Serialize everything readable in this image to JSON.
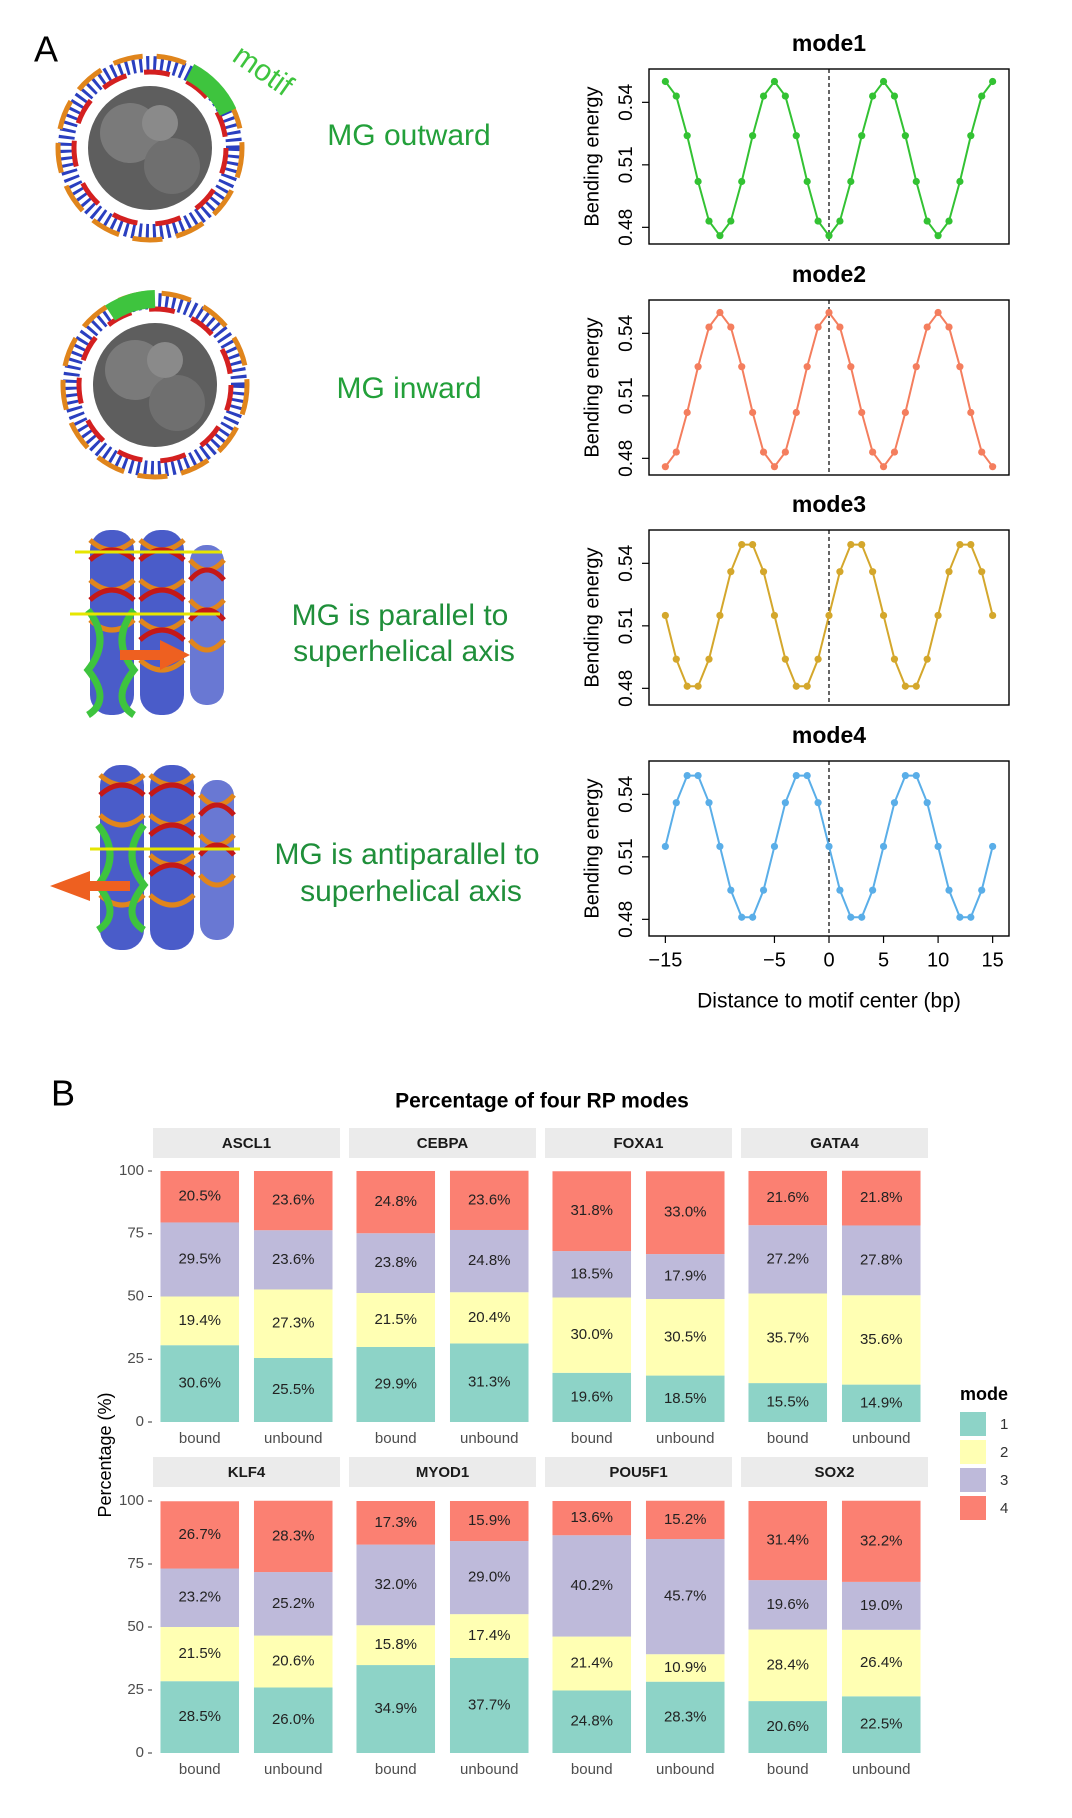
{
  "figure": {
    "panel_labels": [
      "A",
      "B"
    ],
    "annotations": [
      "motif",
      "MG outward",
      "MG inward",
      "MG is parallel to",
      "superhelical axis",
      "MG is antiparallel to",
      "superhelical axis"
    ]
  },
  "chart_data": [
    {
      "type": "line",
      "title": "mode1",
      "ylabel": "Bending energy",
      "x": [
        -15,
        -14,
        -13,
        -12,
        -11,
        -10,
        -9,
        -8,
        -7,
        -6,
        -5,
        -4,
        -3,
        -2,
        -1,
        0,
        1,
        2,
        3,
        4,
        5,
        6,
        7,
        8,
        9,
        10,
        11,
        12,
        13,
        14,
        15
      ],
      "series": [
        {
          "color": "#33c233",
          "values": [
            0.55,
            0.543,
            0.524,
            0.502,
            0.483,
            0.476,
            0.483,
            0.502,
            0.524,
            0.543,
            0.55,
            0.543,
            0.524,
            0.502,
            0.483,
            0.476,
            0.483,
            0.502,
            0.524,
            0.543,
            0.55,
            0.543,
            0.524,
            0.502,
            0.483,
            0.476,
            0.483,
            0.502,
            0.524,
            0.543,
            0.55
          ]
        }
      ],
      "xlim": [
        -16.5,
        16.5
      ],
      "ylim": [
        0.472,
        0.556
      ],
      "yticks": [
        0.48,
        0.51,
        0.54
      ],
      "vline": 0
    },
    {
      "type": "line",
      "title": "mode2",
      "ylabel": "Bending energy",
      "x": [
        -15,
        -14,
        -13,
        -12,
        -11,
        -10,
        -9,
        -8,
        -7,
        -6,
        -5,
        -4,
        -3,
        -2,
        -1,
        0,
        1,
        2,
        3,
        4,
        5,
        6,
        7,
        8,
        9,
        10,
        11,
        12,
        13,
        14,
        15
      ],
      "series": [
        {
          "color": "#f47e5e",
          "values": [
            0.476,
            0.483,
            0.502,
            0.524,
            0.543,
            0.55,
            0.543,
            0.524,
            0.502,
            0.483,
            0.476,
            0.483,
            0.502,
            0.524,
            0.543,
            0.55,
            0.543,
            0.524,
            0.502,
            0.483,
            0.476,
            0.483,
            0.502,
            0.524,
            0.543,
            0.55,
            0.543,
            0.524,
            0.502,
            0.483,
            0.476
          ]
        }
      ],
      "xlim": [
        -16.5,
        16.5
      ],
      "ylim": [
        0.472,
        0.556
      ],
      "yticks": [
        0.48,
        0.51,
        0.54
      ],
      "vline": 0
    },
    {
      "type": "line",
      "title": "mode3",
      "ylabel": "Bending energy",
      "x": [
        -15,
        -14,
        -13,
        -12,
        -11,
        -10,
        -9,
        -8,
        -7,
        -6,
        -5,
        -4,
        -3,
        -2,
        -1,
        0,
        1,
        2,
        3,
        4,
        5,
        6,
        7,
        8,
        9,
        10,
        11,
        12,
        13,
        14,
        15
      ],
      "series": [
        {
          "color": "#d4a72c",
          "values": [
            0.515,
            0.494,
            0.481,
            0.481,
            0.494,
            0.515,
            0.536,
            0.549,
            0.549,
            0.536,
            0.515,
            0.494,
            0.481,
            0.481,
            0.494,
            0.515,
            0.536,
            0.549,
            0.549,
            0.536,
            0.515,
            0.494,
            0.481,
            0.481,
            0.494,
            0.515,
            0.536,
            0.549,
            0.549,
            0.536,
            0.515
          ]
        }
      ],
      "xlim": [
        -16.5,
        16.5
      ],
      "ylim": [
        0.472,
        0.556
      ],
      "yticks": [
        0.48,
        0.51,
        0.54
      ],
      "vline": 0
    },
    {
      "type": "line",
      "title": "mode4",
      "ylabel": "Bending energy",
      "xlabel": "Distance to motif center (bp)",
      "x": [
        -15,
        -14,
        -13,
        -12,
        -11,
        -10,
        -9,
        -8,
        -7,
        -6,
        -5,
        -4,
        -3,
        -2,
        -1,
        0,
        1,
        2,
        3,
        4,
        5,
        6,
        7,
        8,
        9,
        10,
        11,
        12,
        13,
        14,
        15
      ],
      "series": [
        {
          "color": "#5aaee8",
          "values": [
            0.515,
            0.536,
            0.549,
            0.549,
            0.536,
            0.515,
            0.494,
            0.481,
            0.481,
            0.494,
            0.515,
            0.536,
            0.549,
            0.549,
            0.536,
            0.515,
            0.494,
            0.481,
            0.481,
            0.494,
            0.515,
            0.536,
            0.549,
            0.549,
            0.536,
            0.515,
            0.494,
            0.481,
            0.481,
            0.494,
            0.515
          ]
        }
      ],
      "xlim": [
        -16.5,
        16.5
      ],
      "ylim": [
        0.472,
        0.556
      ],
      "yticks": [
        0.48,
        0.51,
        0.54
      ],
      "vline": 0,
      "xticks": [
        {
          "value": -15,
          "label": "−15"
        },
        {
          "value": -5,
          "label": "−5"
        },
        0,
        5,
        10,
        15
      ]
    },
    {
      "type": "bar",
      "stacked": true,
      "title": "Percentage of four RP modes",
      "ylabel": "Percentage (%)",
      "ylim": [
        0,
        100
      ],
      "yticks": [
        0,
        25,
        50,
        75,
        100
      ],
      "categories": [
        "bound",
        "unbound"
      ],
      "legend": {
        "title": "mode",
        "position": "right"
      },
      "series": [
        {
          "name": "1",
          "color": "#8dd3c7"
        },
        {
          "name": "2",
          "color": "#ffffb3"
        },
        {
          "name": "3",
          "color": "#bebada"
        },
        {
          "name": "4",
          "color": "#fb8072"
        }
      ],
      "facets": [
        {
          "title": "ASCL1",
          "series": [
            {
              "values": [
                30.6,
                25.5
              ],
              "value_labels": [
                "30.6%",
                "25.5%"
              ]
            },
            {
              "values": [
                19.4,
                27.3
              ],
              "value_labels": [
                "19.4%",
                "27.3%"
              ]
            },
            {
              "values": [
                29.5,
                23.6
              ],
              "value_labels": [
                "29.5%",
                "23.6%"
              ]
            },
            {
              "values": [
                20.5,
                23.6
              ],
              "value_labels": [
                "20.5%",
                "23.6%"
              ]
            }
          ]
        },
        {
          "title": "CEBPA",
          "series": [
            {
              "values": [
                29.9,
                31.3
              ],
              "value_labels": [
                "29.9%",
                "31.3%"
              ]
            },
            {
              "values": [
                21.5,
                20.4
              ],
              "value_labels": [
                "21.5%",
                "20.4%"
              ]
            },
            {
              "values": [
                23.8,
                24.8
              ],
              "value_labels": [
                "23.8%",
                "24.8%"
              ]
            },
            {
              "values": [
                24.8,
                23.6
              ],
              "value_labels": [
                "24.8%",
                "23.6%"
              ]
            }
          ]
        },
        {
          "title": "FOXA1",
          "series": [
            {
              "values": [
                19.6,
                18.5
              ],
              "value_labels": [
                "19.6%",
                "18.5%"
              ]
            },
            {
              "values": [
                30.0,
                30.5
              ],
              "value_labels": [
                "30.0%",
                "30.5%"
              ]
            },
            {
              "values": [
                18.5,
                17.9
              ],
              "value_labels": [
                "18.5%",
                "17.9%"
              ]
            },
            {
              "values": [
                31.8,
                33.0
              ],
              "value_labels": [
                "31.8%",
                "33.0%"
              ]
            }
          ]
        },
        {
          "title": "GATA4",
          "series": [
            {
              "values": [
                15.5,
                14.9
              ],
              "value_labels": [
                "15.5%",
                "14.9%"
              ]
            },
            {
              "values": [
                35.7,
                35.6
              ],
              "value_labels": [
                "35.7%",
                "35.6%"
              ]
            },
            {
              "values": [
                27.2,
                27.8
              ],
              "value_labels": [
                "27.2%",
                "27.8%"
              ]
            },
            {
              "values": [
                21.6,
                21.8
              ],
              "value_labels": [
                "21.6%",
                "21.8%"
              ]
            }
          ]
        },
        {
          "title": "KLF4",
          "series": [
            {
              "values": [
                28.5,
                26.0
              ],
              "value_labels": [
                "28.5%",
                "26.0%"
              ]
            },
            {
              "values": [
                21.5,
                20.6
              ],
              "value_labels": [
                "21.5%",
                "20.6%"
              ]
            },
            {
              "values": [
                23.2,
                25.2
              ],
              "value_labels": [
                "23.2%",
                "25.2%"
              ]
            },
            {
              "values": [
                26.7,
                28.3
              ],
              "value_labels": [
                "26.7%",
                "28.3%"
              ]
            }
          ]
        },
        {
          "title": "MYOD1",
          "series": [
            {
              "values": [
                34.9,
                37.7
              ],
              "value_labels": [
                "34.9%",
                "37.7%"
              ]
            },
            {
              "values": [
                15.8,
                17.4
              ],
              "value_labels": [
                "15.8%",
                "17.4%"
              ]
            },
            {
              "values": [
                32.0,
                29.0
              ],
              "value_labels": [
                "32.0%",
                "29.0%"
              ]
            },
            {
              "values": [
                17.3,
                15.9
              ],
              "value_labels": [
                "17.3%",
                "15.9%"
              ]
            }
          ]
        },
        {
          "title": "POU5F1",
          "series": [
            {
              "values": [
                24.8,
                28.3
              ],
              "value_labels": [
                "24.8%",
                "28.3%"
              ]
            },
            {
              "values": [
                21.4,
                10.9
              ],
              "value_labels": [
                "21.4%",
                "10.9%"
              ]
            },
            {
              "values": [
                40.2,
                45.7
              ],
              "value_labels": [
                "40.2%",
                "45.7%"
              ]
            },
            {
              "values": [
                13.6,
                15.2
              ],
              "value_labels": [
                "13.6%",
                "15.2%"
              ]
            }
          ]
        },
        {
          "title": "SOX2",
          "series": [
            {
              "values": [
                20.6,
                22.5
              ],
              "value_labels": [
                "20.6%",
                "22.5%"
              ]
            },
            {
              "values": [
                28.4,
                26.4
              ],
              "value_labels": [
                "28.4%",
                "26.4%"
              ]
            },
            {
              "values": [
                19.6,
                19.0
              ],
              "value_labels": [
                "19.6%",
                "19.0%"
              ]
            },
            {
              "values": [
                31.4,
                32.2
              ],
              "value_labels": [
                "31.4%",
                "32.2%"
              ]
            }
          ]
        }
      ]
    }
  ]
}
